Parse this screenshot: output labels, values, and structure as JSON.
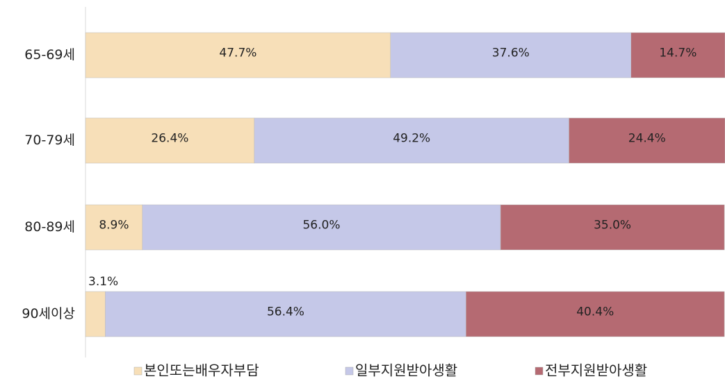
{
  "chart_data": {
    "type": "stacked-barh",
    "categories": [
      "65-69세",
      "70-79세",
      "80-89세",
      "90세이상"
    ],
    "series": [
      {
        "name": "본인또는배우자부담",
        "color": "#f7dfb8",
        "values": [
          47.7,
          26.4,
          8.9,
          3.1
        ],
        "value_labels": [
          "47.7%",
          "26.4%",
          "8.9%",
          "3.1%"
        ]
      },
      {
        "name": "일부지원받아생활",
        "color": "#c5c8e8",
        "values": [
          37.6,
          49.2,
          56.0,
          56.4
        ],
        "value_labels": [
          "37.6%",
          "49.2%",
          "56.0%",
          "56.4%"
        ]
      },
      {
        "name": "전부지원받아생활",
        "color": "#b56a72",
        "values": [
          14.7,
          24.4,
          35.0,
          40.4
        ],
        "value_labels": [
          "14.7%",
          "24.4%",
          "35.0%",
          "40.4%"
        ]
      }
    ],
    "xlim": [
      0,
      100
    ]
  }
}
